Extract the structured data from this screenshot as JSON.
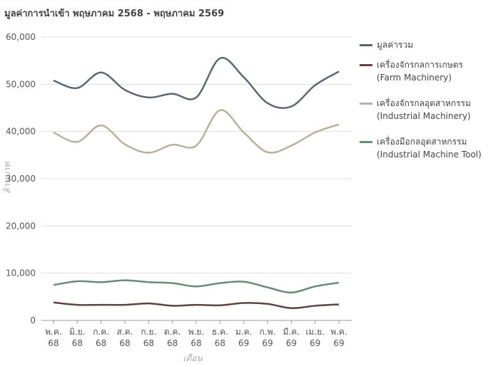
{
  "chart_data": {
    "type": "line",
    "title": "มูลค่าการนำเข้า พฤษภาคม 2568 - พฤษภาคม 2569",
    "x_label": "เดือน",
    "y_label": "ล้านบาท",
    "categories": [
      "พ.ค. 68",
      "มิ.ย. 68",
      "ก.ค. 68",
      "ส.ค. 68",
      "ก.ย. 68",
      "ต.ค. 68",
      "พ.ย. 68",
      "ธ.ค. 68",
      "ม.ค. 69",
      "ก.พ. 69",
      "มี.ค. 69",
      "เม.ย. 69",
      "พ.ค. 69"
    ],
    "series": [
      {
        "name": "มูลค่ารวม",
        "color": "#5f6572",
        "values": [
          50800,
          49200,
          52500,
          48800,
          47200,
          48000,
          47200,
          55500,
          51500,
          46000,
          45300,
          49800,
          52700
        ]
      },
      {
        "name": "เครื่องจักรกลการเกษตร (Farm Machinery)",
        "color": "#5b4545",
        "values": [
          3800,
          3300,
          3300,
          3300,
          3600,
          3100,
          3300,
          3200,
          3700,
          3500,
          2600,
          3100,
          3400
        ]
      },
      {
        "name": "เครื่องจักรกลอุตสาหกรรม (Industrial Machinery)",
        "color": "#b7b29c",
        "values": [
          39800,
          37800,
          41300,
          37300,
          35500,
          37200,
          37000,
          44500,
          39800,
          35600,
          37000,
          39800,
          41500
        ]
      },
      {
        "name": "เครื่องมือกลอุตสาหกรรม (Industrial Machine Tool)",
        "color": "#6b8a79",
        "values": [
          7500,
          8300,
          8100,
          8500,
          8100,
          7900,
          7200,
          7900,
          8200,
          7000,
          5900,
          7200,
          8000
        ]
      }
    ],
    "ylim": [
      0,
      60000
    ],
    "yticks": [
      0,
      {
        "value": 10000,
        "label": "10,000"
      },
      {
        "value": 20000,
        "label": "20,000"
      },
      {
        "value": 30000,
        "label": "30,000"
      },
      {
        "value": 40000,
        "label": "40,000"
      },
      {
        "value": 50000,
        "label": "50,000"
      },
      {
        "value": 60000,
        "label": "60,000"
      }
    ],
    "grid": true
  }
}
